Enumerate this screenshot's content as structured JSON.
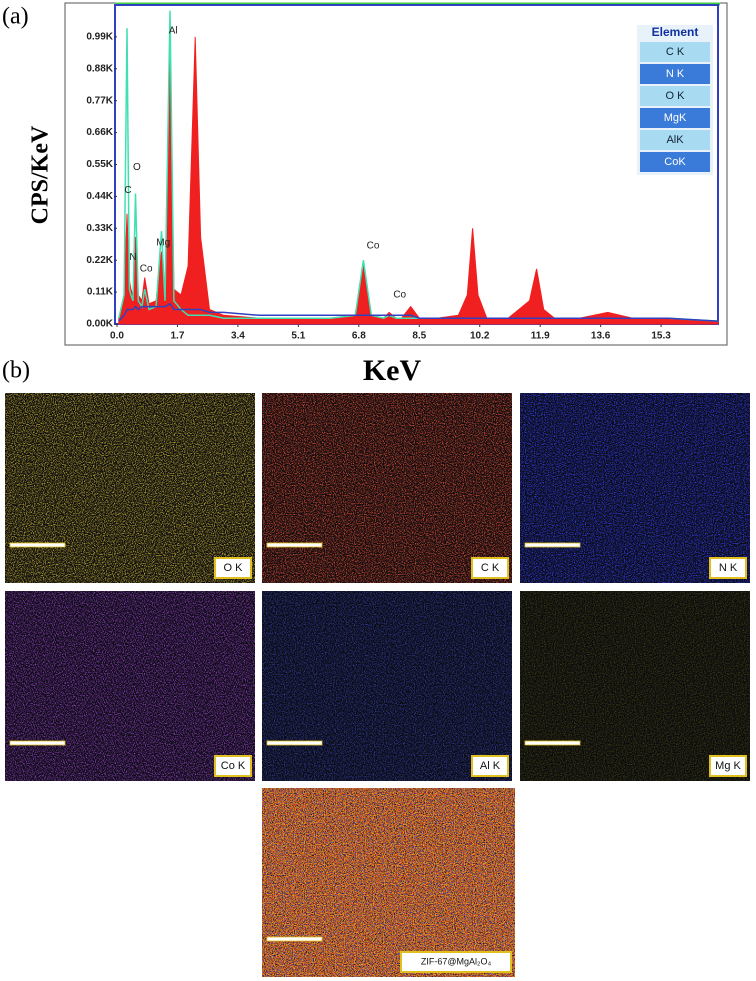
{
  "chart_data": {
    "type": "spectrum",
    "panel_label": "(a)",
    "y_label": "CPS/KeV",
    "x_label": "KeV",
    "xlim": [
      0,
      16.9
    ],
    "ylim": [
      0,
      1.1
    ],
    "xticks": [
      {
        "value": 0,
        "label": "0.0"
      },
      1.7,
      3.4,
      5.1,
      6.8,
      8.5,
      10.2,
      11.9,
      13.6,
      15.3
    ],
    "yticks": [
      {
        "value": 0,
        "label": "0.00K"
      },
      {
        "value": 0.11,
        "label": "0.11K"
      },
      {
        "value": 0.22,
        "label": "0.22K"
      },
      {
        "value": 0.33,
        "label": "0.33K"
      },
      {
        "value": 0.44,
        "label": "0.44K"
      },
      {
        "value": 0.55,
        "label": "0.55K"
      },
      {
        "value": 0.66,
        "label": "0.66K"
      },
      {
        "value": 0.77,
        "label": "0.77K"
      },
      {
        "value": 0.88,
        "label": "0.88K"
      },
      {
        "value": 0.99,
        "label": "0.99K"
      }
    ],
    "x": [
      0.05,
      0.2,
      0.28,
      0.35,
      0.39,
      0.45,
      0.52,
      0.6,
      0.7,
      0.78,
      0.9,
      1.1,
      1.25,
      1.35,
      1.49,
      1.6,
      1.8,
      2.0,
      2.1,
      2.2,
      2.35,
      2.6,
      3.0,
      4.0,
      5.0,
      6.0,
      6.7,
      6.93,
      7.15,
      7.5,
      7.65,
      7.85,
      8.0,
      8.26,
      8.5,
      9.0,
      9.6,
      9.85,
      10.0,
      10.15,
      10.4,
      11.0,
      11.6,
      11.8,
      12.0,
      12.3,
      13.0,
      13.8,
      14.5,
      15.5,
      16.9
    ],
    "series": [
      {
        "color": "#f02020",
        "style": "area",
        "values": [
          0.02,
          0.1,
          0.38,
          0.15,
          0.12,
          0.1,
          0.3,
          0.1,
          0.08,
          0.16,
          0.07,
          0.08,
          0.25,
          0.1,
          0.95,
          0.12,
          0.1,
          0.2,
          0.6,
          0.99,
          0.3,
          0.05,
          0.03,
          0.02,
          0.02,
          0.02,
          0.03,
          0.21,
          0.03,
          0.02,
          0.04,
          0.02,
          0.02,
          0.06,
          0.02,
          0.02,
          0.03,
          0.1,
          0.33,
          0.1,
          0.02,
          0.02,
          0.08,
          0.19,
          0.05,
          0.02,
          0.02,
          0.04,
          0.02,
          0.02,
          0.01
        ]
      },
      {
        "color": "#40e0b0",
        "style": "line",
        "values": [
          0.02,
          0.1,
          1.02,
          0.12,
          0.1,
          0.08,
          0.45,
          0.08,
          0.06,
          0.12,
          0.05,
          0.06,
          0.32,
          0.08,
          1.08,
          0.08,
          0.05,
          0.03,
          0.03,
          0.03,
          0.03,
          0.03,
          0.02,
          0.02,
          0.02,
          0.02,
          0.03,
          0.22,
          0.03,
          0.02,
          0.03,
          0.02,
          0.02,
          0.02,
          0.02,
          0.02,
          0.02,
          0.02,
          0.02,
          0.02,
          0.02,
          0.02,
          0.02,
          0.02,
          0.02,
          0.02,
          0.02,
          0.02,
          0.02,
          0.02,
          0.01
        ]
      },
      {
        "color": "#3040c0",
        "style": "line",
        "values": [
          0.01,
          0.03,
          0.05,
          0.05,
          0.05,
          0.05,
          0.06,
          0.05,
          0.06,
          0.06,
          0.06,
          0.06,
          0.06,
          0.06,
          0.07,
          0.05,
          0.05,
          0.05,
          0.05,
          0.05,
          0.05,
          0.04,
          0.04,
          0.03,
          0.03,
          0.03,
          0.03,
          0.03,
          0.03,
          0.03,
          0.03,
          0.03,
          0.03,
          0.03,
          0.02,
          0.02,
          0.02,
          0.02,
          0.02,
          0.02,
          0.02,
          0.02,
          0.02,
          0.02,
          0.02,
          0.02,
          0.02,
          0.02,
          0.02,
          0.02,
          0.01
        ]
      }
    ],
    "annotations": [
      {
        "text": "C",
        "x": 0.31,
        "y": 0.46
      },
      {
        "text": "O",
        "x": 0.56,
        "y": 0.54
      },
      {
        "text": "N",
        "x": 0.45,
        "y": 0.23
      },
      {
        "text": "Co",
        "x": 0.82,
        "y": 0.19
      },
      {
        "text": "Mg",
        "x": 1.3,
        "y": 0.28
      },
      {
        "text": "Al",
        "x": 1.58,
        "y": 1.01
      },
      {
        "text": "Co",
        "x": 7.2,
        "y": 0.27
      },
      {
        "text": "Co",
        "x": 7.95,
        "y": 0.1
      }
    ],
    "legend_title": "Element",
    "legend_items": [
      "C K",
      "N K",
      "O K",
      "MgK",
      "AlK",
      "CoK"
    ]
  },
  "maps_panel": {
    "panel_label": "(b)",
    "maps": [
      {
        "label": "O K",
        "colors": [
          "#c8b030"
        ]
      },
      {
        "label": "C K",
        "colors": [
          "#e05030"
        ]
      },
      {
        "label": "N K",
        "colors": [
          "#3040f0"
        ]
      },
      {
        "label": "Co K",
        "colors": [
          "#9040c0"
        ]
      },
      {
        "label": "Al K",
        "colors": [
          "#3040a0"
        ]
      },
      {
        "label": "Mg K",
        "colors": [
          "#404010"
        ]
      },
      {
        "label": "ZIF-67@MgAl₂O₄",
        "colors": [
          "#3040f0",
          "#f03010",
          "#e0a020"
        ]
      }
    ]
  }
}
